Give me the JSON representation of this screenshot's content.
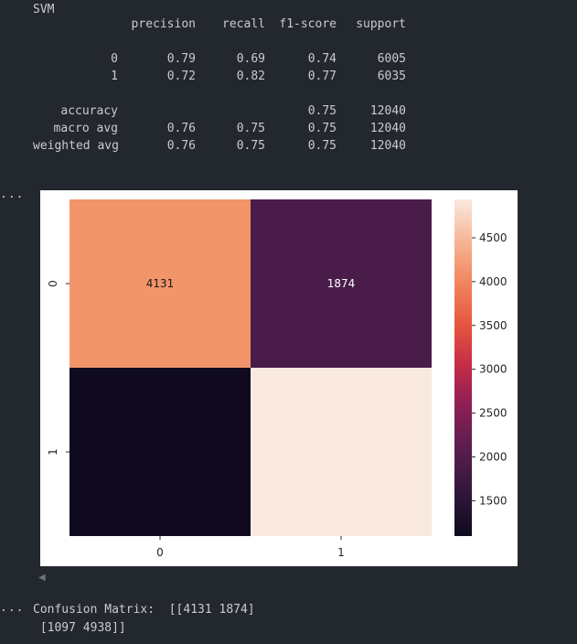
{
  "report": {
    "title": "SVM",
    "headers": [
      "precision",
      "recall",
      "f1-score",
      "support"
    ],
    "rows": [
      {
        "label": "0",
        "precision": "0.79",
        "recall": "0.69",
        "f1": "0.74",
        "support": "6005"
      },
      {
        "label": "1",
        "precision": "0.72",
        "recall": "0.82",
        "f1": "0.77",
        "support": "6035"
      }
    ],
    "summary_rows": [
      {
        "label": "accuracy",
        "precision": "",
        "recall": "",
        "f1": "0.75",
        "support": "12040"
      },
      {
        "label": "macro avg",
        "precision": "0.76",
        "recall": "0.75",
        "f1": "0.75",
        "support": "12040"
      },
      {
        "label": "weighted avg",
        "precision": "0.76",
        "recall": "0.75",
        "f1": "0.75",
        "support": "12040"
      }
    ]
  },
  "cell_prompts": {
    "output_marker": "...",
    "output_marker_2": "..."
  },
  "chart_data": {
    "type": "heatmap",
    "x_categories": [
      "0",
      "1"
    ],
    "y_categories": [
      "0",
      "1"
    ],
    "values": [
      [
        4131,
        1874
      ],
      [
        1097,
        4938
      ]
    ],
    "annotations": [
      [
        "4131",
        "1874"
      ],
      [
        "",
        ""
      ]
    ],
    "colorbar": {
      "ticks": [
        1500,
        2000,
        2500,
        3000,
        3500,
        4000,
        4500
      ],
      "tick_labels": [
        "1500",
        "2000",
        "2500",
        "3000",
        "3500",
        "4000",
        "4500"
      ],
      "range": [
        1097,
        4938
      ],
      "colormap": "rocket"
    },
    "colors": {
      "c_4131": "#f3956a",
      "c_1874": "#4a1c4a",
      "c_1097": "#0f0a1e",
      "c_4938": "#fae9de"
    }
  },
  "confusion_output": {
    "label": "Confusion Matrix:",
    "line1": "[[4131 1874]",
    "line2": " [1097 4938]]"
  }
}
